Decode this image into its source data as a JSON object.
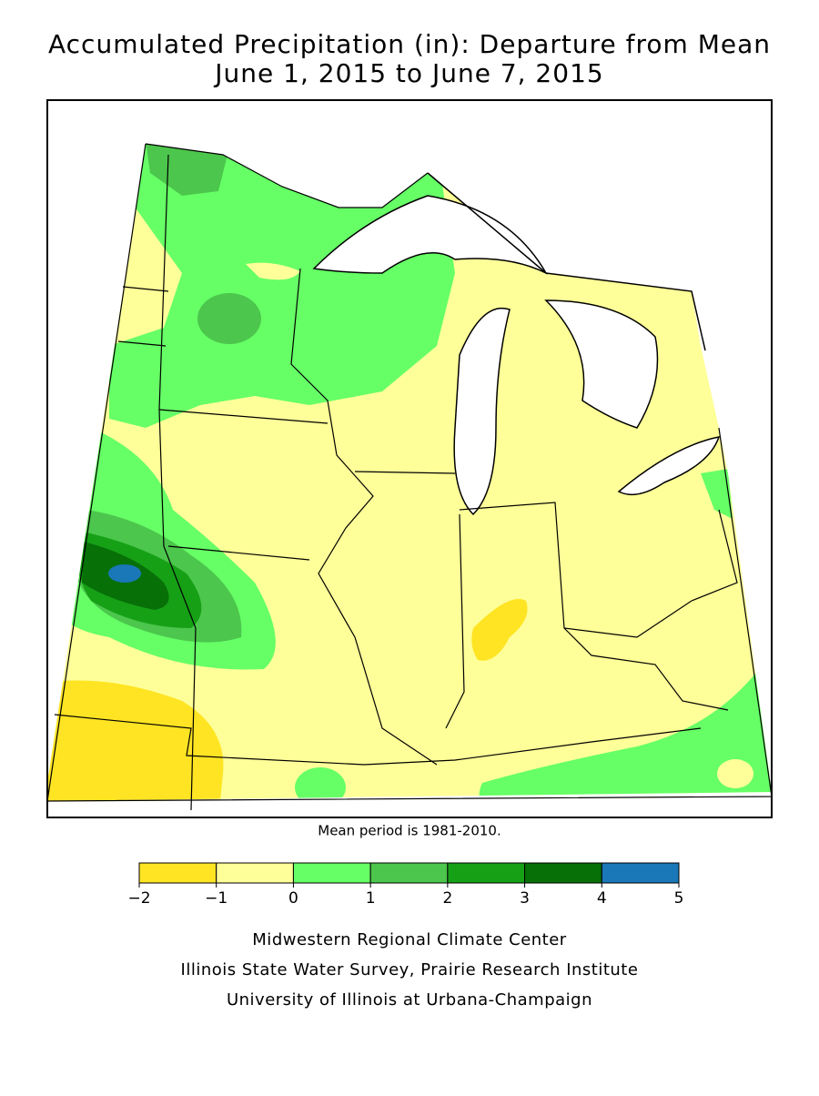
{
  "title": [
    "Accumulated Precipitation (in): Departure from Mean",
    "June 1, 2015 to June 7, 2015"
  ],
  "note": "Mean period is 1981-2010.",
  "legend": {
    "colors": [
      "#ffe423",
      "#ffff99",
      "#66ff66",
      "#4cc64c",
      "#16a016",
      "#077007",
      "#1a78b8"
    ],
    "ticks": [
      {
        "value": -2,
        "label": "−2"
      },
      {
        "value": -1,
        "label": "−1"
      },
      0,
      1,
      2,
      3,
      4,
      5
    ]
  },
  "credits": [
    "Midwestern Regional Climate Center",
    "Illinois State Water Survey, Prairie Research Institute",
    "University of Illinois at Urbana-Champaign"
  ]
}
